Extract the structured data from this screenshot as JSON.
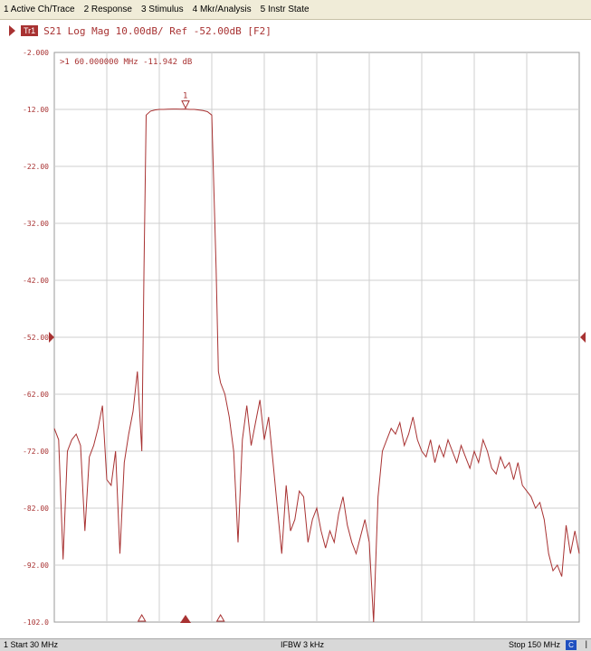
{
  "menu": {
    "items": [
      "1 Active Ch/Trace",
      "2 Response",
      "3 Stimulus",
      "4 Mkr/Analysis",
      "5 Instr State"
    ]
  },
  "trace": {
    "badge": "Tr1",
    "label": "S21 Log Mag 10.00dB/ Ref -52.00dB [F2]"
  },
  "marker": {
    "readout": ">1  60.000000 MHz -11.942 dB",
    "number": "1",
    "freq_mhz": 60,
    "value_db": -11.942
  },
  "status": {
    "start": "1  Start 30 MHz",
    "ifbw": "IFBW 3 kHz",
    "stop": "Stop 150 MHz",
    "badge": "C"
  },
  "colors": {
    "trace": "#a83232",
    "grid": "#cfcfcf"
  },
  "chart_data": {
    "type": "line",
    "title": "",
    "xlabel": "",
    "ylabel": "",
    "xlim": [
      30,
      150
    ],
    "ylim": [
      -102,
      -2
    ],
    "grid": true,
    "yticks": [
      -2,
      -12,
      -22,
      -32,
      -42,
      -52,
      -62,
      -72,
      -82,
      -92,
      -102
    ],
    "ytick_labels": [
      "-2.000",
      "-12.00",
      "-22.00",
      "-32.00",
      "-42.00",
      "-52.00",
      "-62.00",
      "-72.00",
      "-82.00",
      "-92.00",
      "-102.0"
    ],
    "reference_level": -52,
    "series": [
      {
        "x": [
          30,
          31,
          32,
          33,
          34,
          35,
          36,
          37,
          38,
          39,
          40,
          41,
          42,
          43,
          44,
          45,
          46,
          47,
          48,
          49,
          50,
          50.5,
          51,
          52,
          53,
          54,
          55,
          56,
          57,
          58,
          59,
          60,
          61,
          62,
          63,
          64,
          65,
          66,
          67,
          67.5,
          68,
          69,
          70,
          71,
          72,
          73,
          74,
          75,
          76,
          77,
          78,
          79,
          80,
          81,
          82,
          83,
          84,
          85,
          86,
          87,
          88,
          89,
          90,
          91,
          92,
          93,
          94,
          95,
          96,
          97,
          98,
          99,
          100,
          101,
          102,
          103,
          104,
          105,
          106,
          107,
          108,
          109,
          110,
          111,
          112,
          113,
          114,
          115,
          116,
          117,
          118,
          119,
          120,
          121,
          122,
          123,
          124,
          125,
          126,
          127,
          128,
          129,
          130,
          131,
          132,
          133,
          134,
          135,
          136,
          137,
          138,
          139,
          140,
          141,
          142,
          143,
          144,
          145,
          146,
          147,
          148,
          149,
          150
        ],
        "values": [
          -68,
          -70,
          -91,
          -72,
          -70,
          -69,
          -71,
          -86,
          -73,
          -71,
          -68,
          -64,
          -77,
          -78,
          -72,
          -90,
          -74,
          -69,
          -65,
          -58,
          -72,
          -40,
          -13,
          -12.3,
          -12.1,
          -12.0,
          -12.0,
          -11.95,
          -11.94,
          -11.94,
          -11.95,
          -11.94,
          -12.0,
          -12.0,
          -12.1,
          -12.2,
          -12.4,
          -13,
          -40,
          -58,
          -60,
          -62,
          -66,
          -72,
          -88,
          -70,
          -64,
          -71,
          -67,
          -63,
          -70,
          -66,
          -74,
          -82,
          -90,
          -78,
          -86,
          -84,
          -79,
          -80,
          -88,
          -84,
          -82,
          -86,
          -89,
          -86,
          -88,
          -83,
          -80,
          -85,
          -88,
          -90,
          -87,
          -84,
          -88,
          -102,
          -80,
          -72,
          -70,
          -68,
          -69,
          -67,
          -71,
          -69,
          -66,
          -70,
          -72,
          -73,
          -70,
          -74,
          -71,
          -73,
          -70,
          -72,
          -74,
          -71,
          -73,
          -75,
          -72,
          -74,
          -70,
          -72,
          -75,
          -76,
          -73,
          -75,
          -74,
          -77,
          -74,
          -78,
          -79,
          -80,
          -82,
          -81,
          -84,
          -90,
          -93,
          -92,
          -94,
          -85,
          -90,
          -86,
          -90
        ]
      }
    ]
  }
}
